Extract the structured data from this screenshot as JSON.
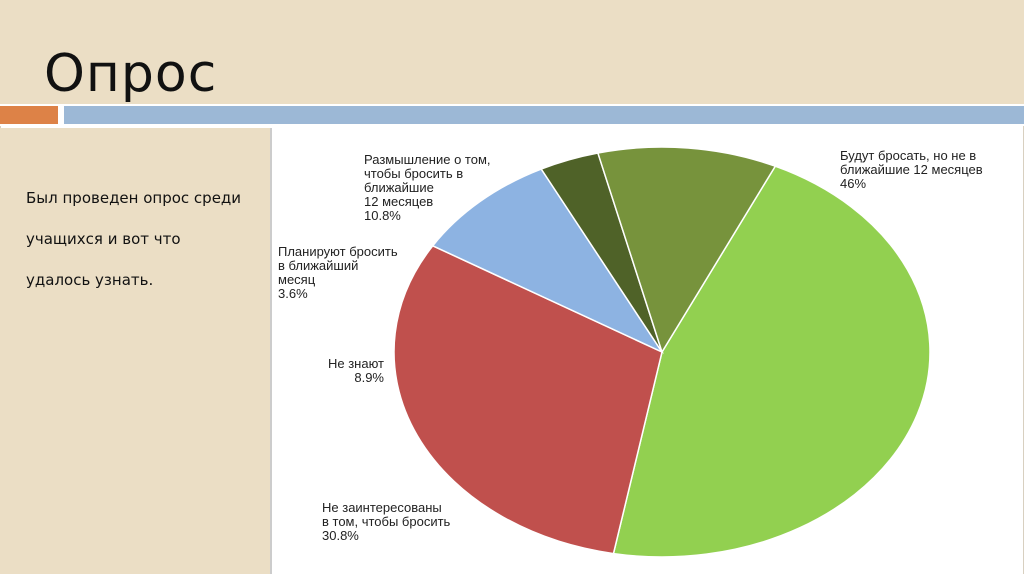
{
  "slide": {
    "title": "Опрос",
    "body_lines": [
      "Был проведен опрос среди",
      "учащихся и вот что",
      "удалось узнать."
    ]
  },
  "colors": {
    "header_bg": "#ebdec5",
    "accent_orange": "#dd8247",
    "accent_blue": "#9cb8d6"
  },
  "chart_data": {
    "type": "pie",
    "title": "",
    "slices": [
      {
        "label_lines": [
          "Будут бросать, но не в",
          "ближайшие 12 месяцев",
          "46%"
        ],
        "value": 46,
        "color": "#92d050"
      },
      {
        "label_lines": [
          "Не заинтересованы",
          "в том, чтобы бросить",
          "30.8%"
        ],
        "value": 30.8,
        "color": "#c0504d"
      },
      {
        "label_lines": [
          "Не знают",
          "8.9%"
        ],
        "value": 8.9,
        "color": "#8db3e2"
      },
      {
        "label_lines": [
          "Планируют бросить",
          "в ближайший",
          "месяц",
          "3.6%"
        ],
        "value": 3.6,
        "color": "#4f6228"
      },
      {
        "label_lines": [
          "Размышление о том,",
          "чтобы бросить в",
          "ближайшие",
          "12 месяцев",
          "10.8%"
        ],
        "value": 10.8,
        "color": "#77933c"
      }
    ]
  }
}
